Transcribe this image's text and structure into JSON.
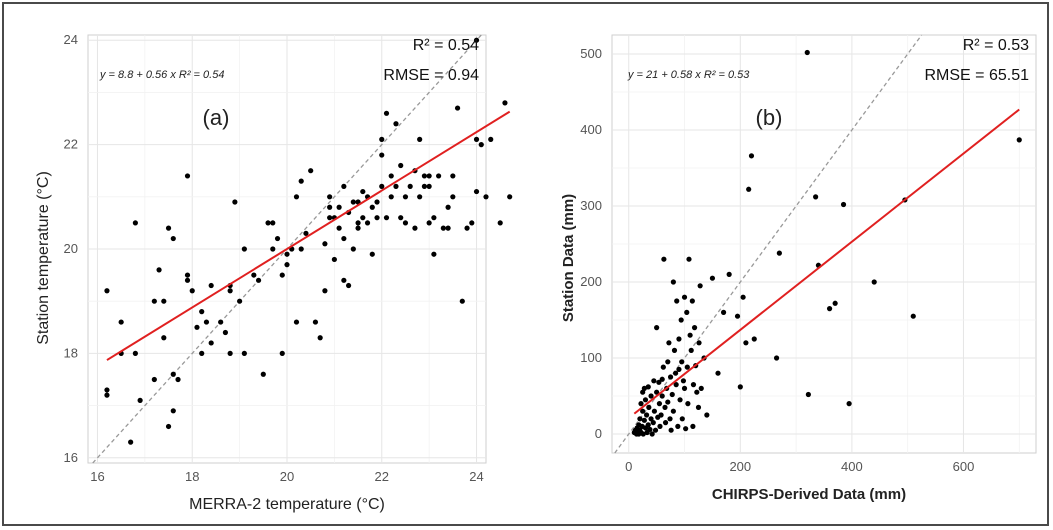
{
  "chart_data": [
    {
      "type": "scatter",
      "panel_label": "(a)",
      "xlabel": "MERRA-2 temperature (°C)",
      "ylabel": "Station temperature (°C)",
      "xlim": [
        16,
        24
      ],
      "ylim": [
        16,
        24
      ],
      "xticks": [
        16,
        18,
        20,
        22,
        24
      ],
      "yticks": [
        16,
        18,
        20,
        22,
        24
      ],
      "grid": true,
      "equation_text": "y = 8.8 + 0.56 x   R² = 0.54",
      "r2_text": "R² = 0.54",
      "rmse_text": "RMSE = 0.94",
      "fit": {
        "intercept": 8.8,
        "slope": 0.56,
        "color": "#e02020"
      },
      "identity_line": {
        "color": "#999999",
        "dashed": true
      },
      "points": [
        [
          16.2,
          19.2
        ],
        [
          16.2,
          17.3
        ],
        [
          16.2,
          17.2
        ],
        [
          16.5,
          18.0
        ],
        [
          16.5,
          18.6
        ],
        [
          16.7,
          16.3
        ],
        [
          16.8,
          20.5
        ],
        [
          16.8,
          18.0
        ],
        [
          16.9,
          17.1
        ],
        [
          17.2,
          17.5
        ],
        [
          17.2,
          19.0
        ],
        [
          17.3,
          19.6
        ],
        [
          17.4,
          18.3
        ],
        [
          17.4,
          19.0
        ],
        [
          17.5,
          20.4
        ],
        [
          17.5,
          16.6
        ],
        [
          17.6,
          20.2
        ],
        [
          17.6,
          17.6
        ],
        [
          17.6,
          16.9
        ],
        [
          17.7,
          17.5
        ],
        [
          17.9,
          19.5
        ],
        [
          17.9,
          21.4
        ],
        [
          17.9,
          19.4
        ],
        [
          18.0,
          19.2
        ],
        [
          18.1,
          18.5
        ],
        [
          18.2,
          18.0
        ],
        [
          18.2,
          18.8
        ],
        [
          18.3,
          18.6
        ],
        [
          18.4,
          19.3
        ],
        [
          18.4,
          18.2
        ],
        [
          18.6,
          18.6
        ],
        [
          18.7,
          18.4
        ],
        [
          18.8,
          19.3
        ],
        [
          18.8,
          19.2
        ],
        [
          18.8,
          18.0
        ],
        [
          18.9,
          20.9
        ],
        [
          19.0,
          19.0
        ],
        [
          19.1,
          18.0
        ],
        [
          19.1,
          20.0
        ],
        [
          19.3,
          19.5
        ],
        [
          19.4,
          19.4
        ],
        [
          19.5,
          17.6
        ],
        [
          19.6,
          20.5
        ],
        [
          19.7,
          20.0
        ],
        [
          19.7,
          20.5
        ],
        [
          19.8,
          20.2
        ],
        [
          19.9,
          18.0
        ],
        [
          19.9,
          19.5
        ],
        [
          20.0,
          19.7
        ],
        [
          20.0,
          19.9
        ],
        [
          20.1,
          20.0
        ],
        [
          20.2,
          18.6
        ],
        [
          20.2,
          21.0
        ],
        [
          20.3,
          21.3
        ],
        [
          20.3,
          20.0
        ],
        [
          20.4,
          20.3
        ],
        [
          20.5,
          21.5
        ],
        [
          20.6,
          18.6
        ],
        [
          20.7,
          18.3
        ],
        [
          20.8,
          19.2
        ],
        [
          20.8,
          20.1
        ],
        [
          20.9,
          20.6
        ],
        [
          20.9,
          20.8
        ],
        [
          20.9,
          21.0
        ],
        [
          21.0,
          20.6
        ],
        [
          21.0,
          19.8
        ],
        [
          21.1,
          20.4
        ],
        [
          21.1,
          20.8
        ],
        [
          21.2,
          21.2
        ],
        [
          21.2,
          19.4
        ],
        [
          21.2,
          20.2
        ],
        [
          21.3,
          20.7
        ],
        [
          21.3,
          19.3
        ],
        [
          21.4,
          20.0
        ],
        [
          21.4,
          20.9
        ],
        [
          21.5,
          20.5
        ],
        [
          21.5,
          20.4
        ],
        [
          21.5,
          20.9
        ],
        [
          21.6,
          20.6
        ],
        [
          21.6,
          21.1
        ],
        [
          21.7,
          20.5
        ],
        [
          21.7,
          21.0
        ],
        [
          21.8,
          20.8
        ],
        [
          21.8,
          19.9
        ],
        [
          21.9,
          20.6
        ],
        [
          21.9,
          20.9
        ],
        [
          22.0,
          21.2
        ],
        [
          22.0,
          22.1
        ],
        [
          22.0,
          21.8
        ],
        [
          22.1,
          22.6
        ],
        [
          22.1,
          20.6
        ],
        [
          22.2,
          21.0
        ],
        [
          22.2,
          21.4
        ],
        [
          22.3,
          22.4
        ],
        [
          22.3,
          21.2
        ],
        [
          22.4,
          20.6
        ],
        [
          22.4,
          21.6
        ],
        [
          22.5,
          20.5
        ],
        [
          22.5,
          21.0
        ],
        [
          22.6,
          21.2
        ],
        [
          22.7,
          21.5
        ],
        [
          22.7,
          20.4
        ],
        [
          22.8,
          22.1
        ],
        [
          22.8,
          21.0
        ],
        [
          22.9,
          21.2
        ],
        [
          22.9,
          21.4
        ],
        [
          23.0,
          20.5
        ],
        [
          23.0,
          21.4
        ],
        [
          23.0,
          21.2
        ],
        [
          23.1,
          20.6
        ],
        [
          23.1,
          19.9
        ],
        [
          23.2,
          21.4
        ],
        [
          23.3,
          20.4
        ],
        [
          23.4,
          20.4
        ],
        [
          23.4,
          20.8
        ],
        [
          23.5,
          21.4
        ],
        [
          23.5,
          21.0
        ],
        [
          23.6,
          22.7
        ],
        [
          23.7,
          19.0
        ],
        [
          23.8,
          20.4
        ],
        [
          23.9,
          20.5
        ],
        [
          24.0,
          22.1
        ],
        [
          24.1,
          22.0
        ],
        [
          24.2,
          21.0
        ],
        [
          24.3,
          22.1
        ],
        [
          24.0,
          24.0
        ],
        [
          24.5,
          20.5
        ],
        [
          24.6,
          22.8
        ],
        [
          24.7,
          21.0
        ],
        [
          24.0,
          21.1
        ]
      ]
    },
    {
      "type": "scatter",
      "panel_label": "(b)",
      "xlabel": "CHIRPS-Derived Data (mm)",
      "ylabel": "Station Data (mm)",
      "xlim": [
        0,
        700
      ],
      "ylim": [
        0,
        500
      ],
      "xticks": [
        0,
        200,
        400,
        600
      ],
      "yticks": [
        0,
        100,
        200,
        300,
        400,
        500
      ],
      "grid": true,
      "equation_text": "y = 21 + 0.58 x   R² = 0.53",
      "r2_text": "R² = 0.53",
      "rmse_text": "RMSE = 65.51",
      "fit": {
        "intercept": 21,
        "slope": 0.58,
        "color": "#e02020"
      },
      "identity_line": {
        "color": "#999999",
        "dashed": true
      },
      "points": [
        [
          10,
          2
        ],
        [
          12,
          5
        ],
        [
          14,
          0
        ],
        [
          15,
          8
        ],
        [
          16,
          3
        ],
        [
          18,
          12
        ],
        [
          18,
          0
        ],
        [
          20,
          20
        ],
        [
          20,
          5
        ],
        [
          22,
          40
        ],
        [
          22,
          2
        ],
        [
          24,
          10
        ],
        [
          25,
          30
        ],
        [
          25,
          55
        ],
        [
          26,
          0
        ],
        [
          28,
          18
        ],
        [
          28,
          60
        ],
        [
          30,
          8
        ],
        [
          30,
          45
        ],
        [
          32,
          25
        ],
        [
          33,
          2
        ],
        [
          35,
          62
        ],
        [
          35,
          12
        ],
        [
          36,
          35
        ],
        [
          38,
          6
        ],
        [
          40,
          50
        ],
        [
          40,
          20
        ],
        [
          42,
          0
        ],
        [
          44,
          15
        ],
        [
          45,
          70
        ],
        [
          46,
          30
        ],
        [
          48,
          5
        ],
        [
          50,
          140
        ],
        [
          50,
          55
        ],
        [
          52,
          22
        ],
        [
          54,
          68
        ],
        [
          55,
          40
        ],
        [
          56,
          10
        ],
        [
          58,
          25
        ],
        [
          60,
          50
        ],
        [
          60,
          72
        ],
        [
          62,
          88
        ],
        [
          63,
          230
        ],
        [
          65,
          35
        ],
        [
          66,
          15
        ],
        [
          68,
          60
        ],
        [
          70,
          42
        ],
        [
          70,
          95
        ],
        [
          72,
          120
        ],
        [
          74,
          20
        ],
        [
          75,
          75
        ],
        [
          76,
          5
        ],
        [
          78,
          52
        ],
        [
          80,
          200
        ],
        [
          80,
          30
        ],
        [
          82,
          110
        ],
        [
          84,
          80
        ],
        [
          85,
          65
        ],
        [
          86,
          175
        ],
        [
          88,
          10
        ],
        [
          90,
          85
        ],
        [
          90,
          125
        ],
        [
          92,
          45
        ],
        [
          94,
          150
        ],
        [
          95,
          95
        ],
        [
          96,
          20
        ],
        [
          98,
          70
        ],
        [
          100,
          180
        ],
        [
          100,
          60
        ],
        [
          102,
          7
        ],
        [
          104,
          160
        ],
        [
          105,
          88
        ],
        [
          106,
          40
        ],
        [
          108,
          230
        ],
        [
          110,
          130
        ],
        [
          112,
          110
        ],
        [
          114,
          175
        ],
        [
          115,
          10
        ],
        [
          116,
          65
        ],
        [
          118,
          140
        ],
        [
          120,
          90
        ],
        [
          122,
          55
        ],
        [
          125,
          35
        ],
        [
          126,
          120
        ],
        [
          128,
          195
        ],
        [
          130,
          60
        ],
        [
          135,
          100
        ],
        [
          140,
          25
        ],
        [
          150,
          205
        ],
        [
          160,
          80
        ],
        [
          170,
          160
        ],
        [
          180,
          210
        ],
        [
          195,
          155
        ],
        [
          200,
          62
        ],
        [
          205,
          180
        ],
        [
          210,
          120
        ],
        [
          215,
          322
        ],
        [
          220,
          366
        ],
        [
          225,
          125
        ],
        [
          265,
          100
        ],
        [
          270,
          238
        ],
        [
          320,
          502
        ],
        [
          322,
          52
        ],
        [
          335,
          312
        ],
        [
          340,
          222
        ],
        [
          360,
          165
        ],
        [
          370,
          172
        ],
        [
          385,
          302
        ],
        [
          395,
          40
        ],
        [
          440,
          200
        ],
        [
          495,
          308
        ],
        [
          510,
          155
        ],
        [
          700,
          387
        ]
      ]
    }
  ]
}
